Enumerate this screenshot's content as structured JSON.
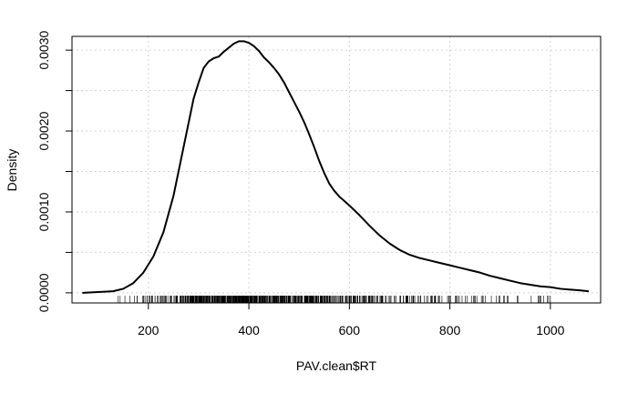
{
  "chart_data": {
    "type": "line",
    "title": "",
    "xlabel": "PAV.clean$RT",
    "ylabel": "Density",
    "xlim": [
      48,
      1100
    ],
    "ylim": [
      -0.000125,
      0.00317
    ],
    "grid": true,
    "x_ticks": [
      200,
      400,
      600,
      800,
      1000
    ],
    "x_tick_labels": [
      "200",
      "400",
      "600",
      "800",
      "1000"
    ],
    "y_ticks": [
      0.0,
      0.0005,
      0.001,
      0.0015,
      0.002,
      0.0025,
      0.003
    ],
    "y_tick_labels": [
      "0.0000",
      "",
      "0.0010",
      "",
      "0.0020",
      "",
      "0.0030"
    ],
    "series": [
      {
        "color": "#000000",
        "x": [
          70,
          100,
          130,
          150,
          170,
          190,
          210,
          230,
          250,
          270,
          290,
          300,
          310,
          320,
          330,
          340,
          350,
          360,
          370,
          380,
          390,
          400,
          410,
          420,
          430,
          440,
          450,
          460,
          470,
          480,
          490,
          500,
          510,
          520,
          530,
          540,
          550,
          560,
          570,
          580,
          600,
          620,
          640,
          660,
          680,
          700,
          720,
          740,
          760,
          780,
          800,
          820,
          840,
          860,
          880,
          900,
          920,
          940,
          960,
          980,
          1000,
          1020,
          1040,
          1060,
          1075
        ],
        "y": [
          0.0,
          1e-05,
          2e-05,
          5e-05,
          0.00012,
          0.00025,
          0.00045,
          0.00075,
          0.0012,
          0.0018,
          0.0024,
          0.0026,
          0.00278,
          0.00286,
          0.0029,
          0.00292,
          0.00298,
          0.00303,
          0.00308,
          0.00311,
          0.00311,
          0.00309,
          0.00305,
          0.00299,
          0.00291,
          0.00285,
          0.00278,
          0.0027,
          0.0026,
          0.00248,
          0.00236,
          0.00224,
          0.00211,
          0.00196,
          0.0018,
          0.00163,
          0.00148,
          0.00135,
          0.00126,
          0.00119,
          0.00108,
          0.00096,
          0.00083,
          0.00071,
          0.00061,
          0.00053,
          0.00047,
          0.00043,
          0.0004,
          0.00037,
          0.00034,
          0.00031,
          0.00028,
          0.00025,
          0.00021,
          0.00018,
          0.00015,
          0.00012,
          0.0001,
          8e-05,
          7e-05,
          5e-05,
          4e-05,
          3e-05,
          2e-05
        ]
      }
    ],
    "rug": {
      "color": "#000000",
      "range": [
        140,
        1000
      ]
    }
  }
}
